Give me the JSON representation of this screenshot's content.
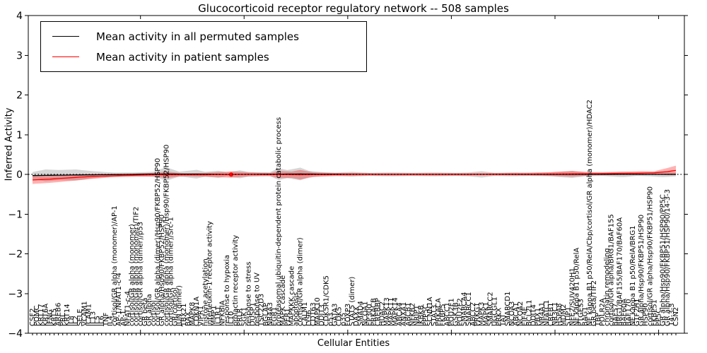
{
  "title": "Glucocorticoid receptor regulatory network -- 508 samples",
  "chart_data": {
    "type": "line",
    "title": "Glucocorticoid receptor regulatory network -- 508 samples",
    "xlabel": "Cellular Entities",
    "ylabel": "Inferred Activity",
    "ylim": [
      -4,
      4
    ],
    "grid": false,
    "legend_position": "upper left",
    "yticks": [
      {
        "value": 4,
        "label": "4"
      },
      {
        "value": 3,
        "label": "3"
      },
      {
        "value": 2,
        "label": "2"
      },
      {
        "value": 1,
        "label": "1"
      },
      {
        "value": 0,
        "label": "0"
      },
      {
        "value": -1,
        "label": "−1"
      },
      {
        "value": -2,
        "label": "−2"
      },
      {
        "value": -3,
        "label": "−3"
      },
      {
        "value": -4,
        "label": "−4"
      }
    ],
    "categories": [
      "CSF2",
      "POMC",
      "KRT17",
      "KRT6A",
      "IFNG",
      "KRT5",
      "AREB6",
      "PRL",
      "KRT14",
      "IL8",
      "IL2",
      "SELE",
      "VCAM1",
      "ICAM1",
      "IL13",
      "IL5",
      "IL6",
      "TNF",
      "IL4",
      "cortisol/GR alpha (monomer)/AP-1",
      "AP-1/NFAT1-c-4",
      "AP-1",
      "NFAT1-c-4",
      "cortisol/GR alpha (monomer)",
      "cortisol/GR alpha (monomer)/TIF2",
      "cortisol/GR alpha (dimer)/p53",
      "GR beta",
      "GR alpha",
      "cortisol",
      "cortisol/GR alpha (dimer)/Hsp90/FKBP52/HSP90",
      "GR alpha/Hsp90/FKBP52/HSP90",
      "cortisol/GR alpha (monomer)/Hsp90/FKBP52/HSP90",
      "cortisol/GR alpha (dimer)/Src-1",
      "GR/cortisol",
      "JUN (dimer)",
      "TBX21",
      "BAX",
      "MAPK8",
      "CDKN1A",
      "VIPR1",
      "histone acetylation",
      "interleukin-1 receptor activity",
      "MMP1",
      "IL1R1",
      "NFKBIA",
      "response to hypoxia",
      "IL10",
      "prolactin receptor activity",
      "PRLR",
      "SGK1",
      "response to stress",
      "DUSP1",
      "response to UV",
      "TSC22D3",
      "BGLAP",
      "NR4A3",
      "EGR1",
      "proteasomal ubiquitin-dependent protein catabolic process",
      "MAPK cascade",
      "PER1",
      "MAPKKK cascade",
      "apoptosis",
      "cortisol/GR alpha (dimer)",
      "CALM1",
      "LY96",
      "CD163",
      "MAPK10",
      "DDIT3",
      "CDK5R1/CDK5",
      "p53",
      "GATA3",
      "CDK5",
      "p35",
      "FOXP3",
      "STAT5 (dimer)",
      "DAXX",
      "SMAD4",
      "NCOA1",
      "EP300",
      "PRKACB",
      "CREBBP",
      "HDAC2",
      "MAPK13",
      "MAPK11",
      "MAPK14",
      "ABCA4",
      "ANXA1",
      "ABCB1",
      "NFKB2",
      "NRIP1",
      "IKBKB",
      "PPP5C",
      "SCNN1A",
      "STAT3",
      "PRKACA",
      "FKBP5",
      "ABCC1",
      "POU2F1",
      "GSK3B",
      "POU2F2",
      "SMARCA4",
      "SMARCC1",
      "ABCC2",
      "PRKG1",
      "MAPK3",
      "MAPK1",
      "SMARCC2",
      "UGCGL1",
      "PRKX",
      "TAT",
      "SMARCD1",
      "NCOA3",
      "ABCA1",
      "NCOA2",
      "EIF4E",
      "BCL2L1",
      "DDIT4",
      "PBX1",
      "NR4A1",
      "NFATC1",
      "CREB1",
      "NR3C1",
      "HSPA8",
      "MDM2",
      "STIP1",
      "NFE2/SUV420H1",
      "NF kappa B1 p50/RelA",
      "PTGES3",
      "BAG1",
      "NF kappa B1 p50/RelA/Cbp/cortisol/GR alpha (monomer)/HDAC2",
      "GR beta/TIF2",
      "TBP",
      "POLR2A",
      "chromatin remodeling",
      "cortisol/GR alpha/BRG1/BAF155",
      "BAF57",
      "BRG1/BAF155/BAF170/BAF60A",
      "BAF60A",
      "BAF170",
      "NF kappa B1 p50/RelA/BRG1",
      "GTF2H1",
      "GR alpha/Hsp90/FKBP51/HSP90",
      "HSP90",
      "cortisol/GR alpha/Hsp90/FKBP51/HSP90",
      "FKBP51",
      "PP5C",
      "GR alpha/Hsp90/FKBP51/HSP90/PP5C",
      "GR alpha/Hsp90/FKBP51/HSP90/14-3-3",
      "14-3-3",
      "CSN2"
    ],
    "series": [
      {
        "name": "Mean activity in all permuted samples",
        "color": "#000000",
        "band_color": "#000000",
        "band_opacity": 0.16,
        "mean_keypoints": [
          [
            0,
            -0.03
          ],
          [
            6,
            -0.02
          ],
          [
            14,
            -0.01
          ],
          [
            31,
            0.01
          ],
          [
            45,
            0.0
          ],
          [
            62,
            0.01
          ],
          [
            80,
            0.0
          ],
          [
            149,
            0.0
          ]
        ],
        "band_half_keypoints": [
          [
            0,
            0.09
          ],
          [
            3,
            0.15
          ],
          [
            6,
            0.13
          ],
          [
            10,
            0.14
          ],
          [
            14,
            0.09
          ],
          [
            19,
            0.05
          ],
          [
            24,
            0.05
          ],
          [
            28,
            0.06
          ],
          [
            31,
            0.17
          ],
          [
            34,
            0.06
          ],
          [
            38,
            0.11
          ],
          [
            40,
            0.06
          ],
          [
            43,
            0.09
          ],
          [
            45,
            0.05
          ],
          [
            48,
            0.1
          ],
          [
            50,
            0.06
          ],
          [
            52,
            0.05
          ],
          [
            55,
            0.05
          ],
          [
            57,
            0.15
          ],
          [
            59,
            0.1
          ],
          [
            62,
            0.16
          ],
          [
            64,
            0.08
          ],
          [
            67,
            0.05
          ],
          [
            70,
            0.04
          ],
          [
            74,
            0.06
          ],
          [
            78,
            0.04
          ],
          [
            83,
            0.05
          ],
          [
            88,
            0.04
          ],
          [
            93,
            0.05
          ],
          [
            98,
            0.04
          ],
          [
            101,
            0.05
          ],
          [
            104,
            0.08
          ],
          [
            107,
            0.04
          ],
          [
            111,
            0.05
          ],
          [
            115,
            0.04
          ],
          [
            120,
            0.05
          ],
          [
            125,
            0.09
          ],
          [
            128,
            0.05
          ],
          [
            132,
            0.04
          ],
          [
            135,
            0.06
          ],
          [
            137,
            0.07
          ],
          [
            140,
            0.04
          ],
          [
            143,
            0.05
          ],
          [
            146,
            0.07
          ],
          [
            149,
            0.05
          ]
        ]
      },
      {
        "name": "Mean activity in patient samples",
        "color": "#ff0000",
        "band_color": "#ff0000",
        "band_opacity": 0.3,
        "marker_indices": [
          46
        ],
        "mean_keypoints": [
          [
            0,
            -0.14
          ],
          [
            4,
            -0.12
          ],
          [
            8,
            -0.09
          ],
          [
            14,
            -0.05
          ],
          [
            20,
            -0.03
          ],
          [
            28,
            -0.01
          ],
          [
            40,
            -0.01
          ],
          [
            50,
            0.0
          ],
          [
            62,
            -0.01
          ],
          [
            75,
            0.0
          ],
          [
            100,
            0.0
          ],
          [
            120,
            0.01
          ],
          [
            133,
            0.02
          ],
          [
            140,
            0.03
          ],
          [
            144,
            0.04
          ],
          [
            147,
            0.07
          ],
          [
            149,
            0.1
          ]
        ],
        "band_half_keypoints": [
          [
            0,
            0.1
          ],
          [
            6,
            0.09
          ],
          [
            12,
            0.07
          ],
          [
            18,
            0.04
          ],
          [
            24,
            0.04
          ],
          [
            28,
            0.05
          ],
          [
            31,
            0.08
          ],
          [
            35,
            0.04
          ],
          [
            40,
            0.05
          ],
          [
            46,
            0.08
          ],
          [
            50,
            0.05
          ],
          [
            55,
            0.04
          ],
          [
            57,
            0.09
          ],
          [
            60,
            0.08
          ],
          [
            62,
            0.12
          ],
          [
            65,
            0.06
          ],
          [
            70,
            0.04
          ],
          [
            80,
            0.03
          ],
          [
            90,
            0.03
          ],
          [
            100,
            0.03
          ],
          [
            110,
            0.03
          ],
          [
            118,
            0.04
          ],
          [
            125,
            0.07
          ],
          [
            130,
            0.04
          ],
          [
            136,
            0.04
          ],
          [
            141,
            0.05
          ],
          [
            144,
            0.04
          ],
          [
            147,
            0.09
          ],
          [
            149,
            0.12
          ]
        ]
      }
    ],
    "zero_line": {
      "value": 0,
      "style": "dotted",
      "color": "#000000"
    },
    "top_tick_indices": [
      25,
      49,
      73,
      97,
      121,
      145
    ]
  },
  "legend": {
    "items": [
      {
        "label": "Mean activity in all permuted samples",
        "color": "#000000"
      },
      {
        "label": "Mean activity in patient samples",
        "color": "#ff0000"
      }
    ]
  },
  "axes": {
    "xlabel": "Cellular Entities",
    "ylabel": "Inferred Activity"
  }
}
